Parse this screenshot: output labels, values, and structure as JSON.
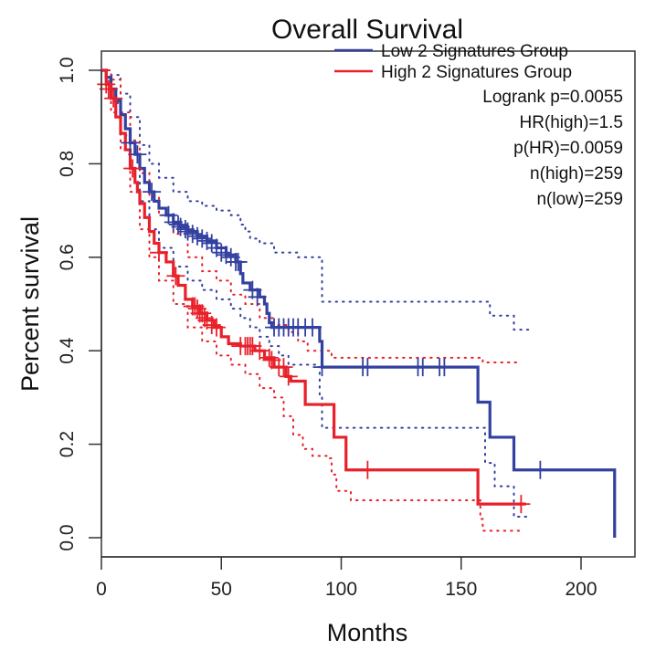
{
  "chart_data": {
    "type": "line",
    "subtype": "kaplan-meier",
    "title": "Overall Survival",
    "xlabel": "Months",
    "ylabel": "Percent survival",
    "xlim": [
      0,
      220
    ],
    "ylim": [
      0,
      1.0
    ],
    "x_ticks": [
      0,
      50,
      100,
      150,
      200
    ],
    "x_tick_labels": [
      "0",
      "50",
      "100",
      "150",
      "200"
    ],
    "y_ticks": [
      0.0,
      0.2,
      0.4,
      0.6,
      0.8,
      1.0
    ],
    "y_tick_labels": [
      "0.0",
      "0.2",
      "0.4",
      "0.6",
      "0.8",
      "1.0"
    ],
    "grid": false,
    "legend_position": "top-right",
    "legend": [
      {
        "label": "Low 2 Signatures Group",
        "color": "#3340a0"
      },
      {
        "label": "High 2 Signatures Group",
        "color": "#e8202a"
      }
    ],
    "annotations": [
      "Logrank p=0.0055",
      "HR(high)=1.5",
      "p(HR)=0.0059",
      "n(high)=259",
      "n(low)=259"
    ],
    "series": [
      {
        "name": "Low 2 Signatures Group",
        "color": "#3340a0",
        "steps": [
          [
            0,
            1.0
          ],
          [
            2,
            0.985
          ],
          [
            4,
            0.96
          ],
          [
            6,
            0.935
          ],
          [
            8,
            0.905
          ],
          [
            10,
            0.875
          ],
          [
            12,
            0.845
          ],
          [
            14,
            0.82
          ],
          [
            16,
            0.79
          ],
          [
            18,
            0.76
          ],
          [
            20,
            0.74
          ],
          [
            22,
            0.72
          ],
          [
            24,
            0.705
          ],
          [
            27,
            0.69
          ],
          [
            30,
            0.675
          ],
          [
            33,
            0.665
          ],
          [
            36,
            0.655
          ],
          [
            40,
            0.645
          ],
          [
            44,
            0.635
          ],
          [
            48,
            0.62
          ],
          [
            52,
            0.605
          ],
          [
            56,
            0.59
          ],
          [
            58,
            0.565
          ],
          [
            59,
            0.545
          ],
          [
            62,
            0.53
          ],
          [
            66,
            0.515
          ],
          [
            68,
            0.5
          ],
          [
            69,
            0.48
          ],
          [
            70,
            0.46
          ],
          [
            71,
            0.45
          ],
          [
            90,
            0.45
          ],
          [
            91,
            0.42
          ],
          [
            92,
            0.365
          ],
          [
            157,
            0.29
          ],
          [
            162,
            0.215
          ],
          [
            172,
            0.145
          ],
          [
            214,
            0.0
          ]
        ],
        "end_x": 214,
        "censor": [
          [
            12,
            0.845
          ],
          [
            15,
            0.82
          ],
          [
            21,
            0.74
          ],
          [
            28,
            0.69
          ],
          [
            30,
            0.675
          ],
          [
            32,
            0.67
          ],
          [
            33,
            0.665
          ],
          [
            35,
            0.66
          ],
          [
            36,
            0.655
          ],
          [
            38,
            0.65
          ],
          [
            40,
            0.645
          ],
          [
            42,
            0.64
          ],
          [
            44,
            0.635
          ],
          [
            46,
            0.63
          ],
          [
            48,
            0.62
          ],
          [
            50,
            0.61
          ],
          [
            52,
            0.605
          ],
          [
            54,
            0.6
          ],
          [
            56,
            0.59
          ],
          [
            57,
            0.59
          ],
          [
            63,
            0.53
          ],
          [
            65,
            0.515
          ],
          [
            72,
            0.45
          ],
          [
            74,
            0.45
          ],
          [
            76,
            0.45
          ],
          [
            78,
            0.45
          ],
          [
            80,
            0.45
          ],
          [
            82,
            0.45
          ],
          [
            85,
            0.45
          ],
          [
            88,
            0.45
          ],
          [
            92,
            0.365
          ],
          [
            109,
            0.365
          ],
          [
            111,
            0.365
          ],
          [
            132,
            0.365
          ],
          [
            134,
            0.365
          ],
          [
            141,
            0.365
          ],
          [
            143,
            0.365
          ],
          [
            183,
            0.145
          ]
        ],
        "ci_upper": [
          [
            0,
            1.0
          ],
          [
            4,
            0.99
          ],
          [
            8,
            0.95
          ],
          [
            12,
            0.9
          ],
          [
            16,
            0.84
          ],
          [
            20,
            0.8
          ],
          [
            24,
            0.77
          ],
          [
            30,
            0.74
          ],
          [
            36,
            0.72
          ],
          [
            42,
            0.71
          ],
          [
            48,
            0.7
          ],
          [
            54,
            0.69
          ],
          [
            58,
            0.67
          ],
          [
            60,
            0.655
          ],
          [
            62,
            0.64
          ],
          [
            66,
            0.63
          ],
          [
            72,
            0.61
          ],
          [
            82,
            0.6
          ],
          [
            90,
            0.6
          ],
          [
            92,
            0.505
          ],
          [
            158,
            0.505
          ],
          [
            162,
            0.475
          ],
          [
            172,
            0.445
          ],
          [
            178,
            0.445
          ]
        ],
        "ci_lower": [
          [
            0,
            1.0
          ],
          [
            4,
            0.93
          ],
          [
            8,
            0.86
          ],
          [
            12,
            0.79
          ],
          [
            16,
            0.72
          ],
          [
            20,
            0.66
          ],
          [
            24,
            0.62
          ],
          [
            30,
            0.58
          ],
          [
            36,
            0.55
          ],
          [
            42,
            0.53
          ],
          [
            48,
            0.51
          ],
          [
            54,
            0.49
          ],
          [
            58,
            0.47
          ],
          [
            62,
            0.45
          ],
          [
            66,
            0.43
          ],
          [
            70,
            0.41
          ],
          [
            74,
            0.39
          ],
          [
            78,
            0.37
          ],
          [
            90,
            0.365
          ],
          [
            91,
            0.3
          ],
          [
            92,
            0.235
          ],
          [
            158,
            0.235
          ],
          [
            160,
            0.16
          ],
          [
            164,
            0.11
          ],
          [
            172,
            0.095
          ],
          [
            172,
            0.045
          ],
          [
            178,
            0.045
          ]
        ]
      },
      {
        "name": "High 2 Signatures Group",
        "color": "#e8202a",
        "steps": [
          [
            0,
            1.0
          ],
          [
            2,
            0.97
          ],
          [
            4,
            0.94
          ],
          [
            6,
            0.9
          ],
          [
            8,
            0.865
          ],
          [
            10,
            0.83
          ],
          [
            12,
            0.79
          ],
          [
            14,
            0.76
          ],
          [
            15,
            0.74
          ],
          [
            16,
            0.715
          ],
          [
            18,
            0.685
          ],
          [
            20,
            0.655
          ],
          [
            22,
            0.63
          ],
          [
            24,
            0.61
          ],
          [
            27,
            0.59
          ],
          [
            30,
            0.56
          ],
          [
            32,
            0.54
          ],
          [
            35,
            0.51
          ],
          [
            38,
            0.495
          ],
          [
            41,
            0.48
          ],
          [
            44,
            0.465
          ],
          [
            47,
            0.45
          ],
          [
            50,
            0.43
          ],
          [
            53,
            0.415
          ],
          [
            58,
            0.41
          ],
          [
            64,
            0.4
          ],
          [
            68,
            0.385
          ],
          [
            72,
            0.365
          ],
          [
            77,
            0.345
          ],
          [
            79,
            0.335
          ],
          [
            85,
            0.285
          ],
          [
            97,
            0.215
          ],
          [
            102,
            0.145
          ],
          [
            157,
            0.072
          ],
          [
            177,
            0.072
          ]
        ],
        "end_x": 177,
        "censor": [
          [
            2,
            0.97
          ],
          [
            3,
            0.96
          ],
          [
            5,
            0.94
          ],
          [
            13,
            0.79
          ],
          [
            24,
            0.61
          ],
          [
            31,
            0.56
          ],
          [
            38,
            0.495
          ],
          [
            39,
            0.495
          ],
          [
            40,
            0.49
          ],
          [
            41,
            0.48
          ],
          [
            42,
            0.48
          ],
          [
            43,
            0.47
          ],
          [
            44,
            0.465
          ],
          [
            46,
            0.455
          ],
          [
            48,
            0.45
          ],
          [
            58,
            0.41
          ],
          [
            60,
            0.41
          ],
          [
            61,
            0.41
          ],
          [
            62,
            0.41
          ],
          [
            63,
            0.41
          ],
          [
            66,
            0.4
          ],
          [
            70,
            0.385
          ],
          [
            71,
            0.38
          ],
          [
            74,
            0.365
          ],
          [
            76,
            0.365
          ],
          [
            78,
            0.345
          ],
          [
            111,
            0.145
          ],
          [
            175,
            0.072
          ]
        ],
        "ci_upper": [
          [
            0,
            1.0
          ],
          [
            4,
            0.98
          ],
          [
            8,
            0.91
          ],
          [
            12,
            0.85
          ],
          [
            16,
            0.78
          ],
          [
            20,
            0.73
          ],
          [
            24,
            0.69
          ],
          [
            30,
            0.65
          ],
          [
            36,
            0.6
          ],
          [
            42,
            0.57
          ],
          [
            48,
            0.55
          ],
          [
            54,
            0.52
          ],
          [
            60,
            0.5
          ],
          [
            66,
            0.47
          ],
          [
            72,
            0.455
          ],
          [
            78,
            0.44
          ],
          [
            82,
            0.42
          ],
          [
            86,
            0.4
          ],
          [
            96,
            0.385
          ],
          [
            158,
            0.385
          ],
          [
            159,
            0.375
          ],
          [
            175,
            0.375
          ]
        ],
        "ci_lower": [
          [
            0,
            1.0
          ],
          [
            4,
            0.91
          ],
          [
            8,
            0.83
          ],
          [
            12,
            0.74
          ],
          [
            16,
            0.66
          ],
          [
            20,
            0.6
          ],
          [
            24,
            0.55
          ],
          [
            30,
            0.5
          ],
          [
            36,
            0.45
          ],
          [
            42,
            0.42
          ],
          [
            48,
            0.39
          ],
          [
            54,
            0.37
          ],
          [
            60,
            0.35
          ],
          [
            66,
            0.32
          ],
          [
            72,
            0.3
          ],
          [
            76,
            0.26
          ],
          [
            80,
            0.22
          ],
          [
            84,
            0.19
          ],
          [
            88,
            0.175
          ],
          [
            95,
            0.17
          ],
          [
            96,
            0.135
          ],
          [
            98,
            0.1
          ],
          [
            104,
            0.08
          ],
          [
            157,
            0.08
          ],
          [
            158,
            0.04
          ],
          [
            159,
            0.015
          ],
          [
            175,
            0.015
          ]
        ]
      }
    ]
  }
}
